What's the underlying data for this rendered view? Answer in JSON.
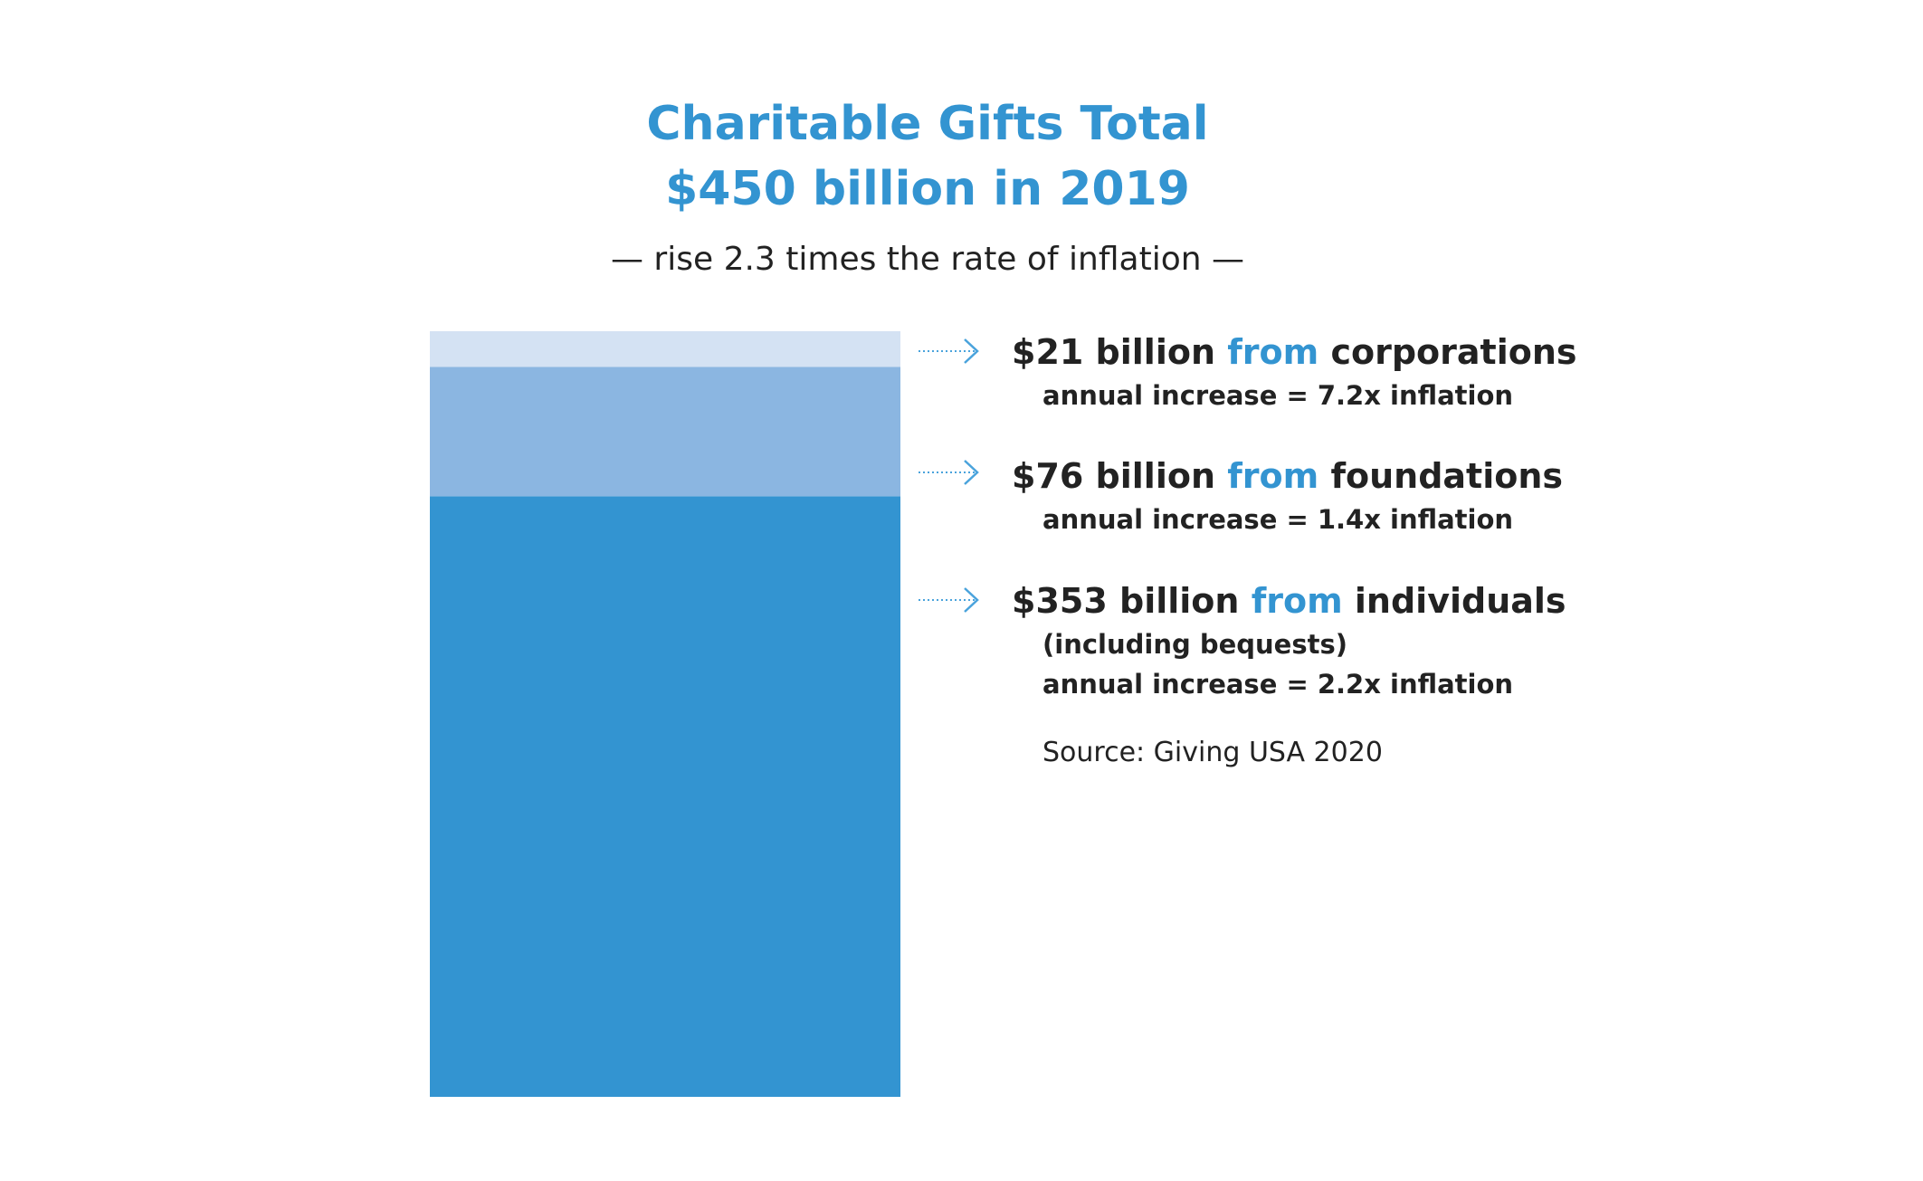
{
  "colors": {
    "accent": "#3394d1",
    "text": "#222222",
    "arrow": "#4aa3dc"
  },
  "chart_data": {
    "type": "bar",
    "title": "Charitable Gifts Total",
    "title_line2": "$450 billion in 2019",
    "subtitle": "— rise 2.3 times the rate of inflation —",
    "total": 450,
    "stacked": true,
    "series": [
      {
        "value": 353,
        "color": "#3394d1",
        "label_amount": "$353 billion",
        "label_from": "from",
        "label_source": "individuals",
        "notes": [
          "(including bequests)",
          "annual increase = 2.2x inflation"
        ]
      },
      {
        "value": 76,
        "color": "#8bb6e1",
        "label_amount": "$76 billion",
        "label_from": "from",
        "label_source": "foundations",
        "notes": [
          "annual increase = 1.4x inflation"
        ]
      },
      {
        "value": 21,
        "color": "#d4e2f3",
        "label_amount": "$21 billion",
        "label_from": "from",
        "label_source": "corporations",
        "notes": [
          "annual increase = 7.2x inflation"
        ]
      }
    ],
    "source": "Source: Giving USA 2020",
    "legend": "right"
  }
}
